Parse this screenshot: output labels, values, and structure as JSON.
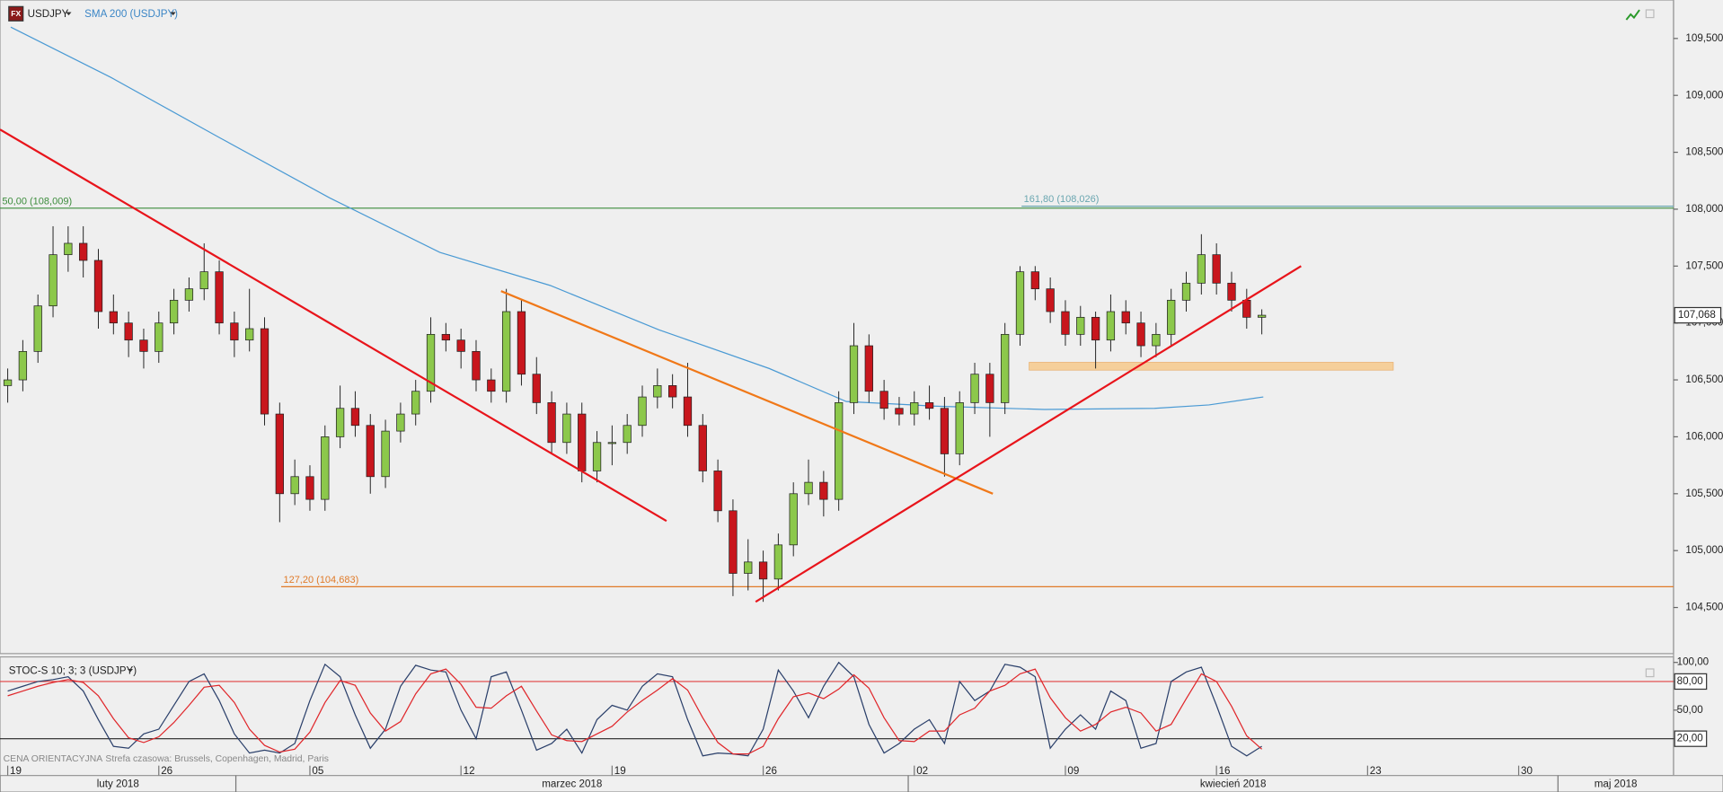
{
  "chart_data": {
    "type": "candlestick",
    "symbol_icon": "FX",
    "title": "USDJPY",
    "indicator_label": "SMA 200 (USDJPY)",
    "ylim": [
      104.095,
      109.838
    ],
    "xlim": [
      -0.51,
      110.25
    ],
    "yticks": [
      {
        "value": 104.5,
        "label": "104,500"
      },
      {
        "value": 105,
        "label": "105,000"
      },
      {
        "value": 105.5,
        "label": "105,500"
      },
      {
        "value": 106,
        "label": "106,000"
      },
      {
        "value": 106.5,
        "label": "106,500"
      },
      {
        "value": 107,
        "label": "107,000"
      },
      {
        "value": 107.5,
        "label": "107,500"
      },
      {
        "value": 108,
        "label": "108,000"
      },
      {
        "value": 108.5,
        "label": "108,500"
      },
      {
        "value": 109,
        "label": "109,000"
      },
      {
        "value": 109.5,
        "label": "109,500"
      }
    ],
    "xticks": [
      {
        "value": 0,
        "label": "19"
      },
      {
        "value": 10,
        "label": "26"
      },
      {
        "value": 20,
        "label": "05"
      },
      {
        "value": 30,
        "label": "12"
      },
      {
        "value": 40,
        "label": "19"
      },
      {
        "value": 50,
        "label": "26"
      },
      {
        "value": 60,
        "label": "02"
      },
      {
        "value": 70,
        "label": "09"
      },
      {
        "value": 80,
        "label": "16"
      },
      {
        "value": 90,
        "label": "23"
      },
      {
        "value": 100,
        "label": "30"
      }
    ],
    "months": [
      {
        "label": "luty 2018",
        "start": -0.51,
        "end": 15.1
      },
      {
        "label": "marzec 2018",
        "start": 15.1,
        "end": 59.6
      },
      {
        "label": "kwiecień 2018",
        "start": 59.6,
        "end": 102.6
      },
      {
        "label": "maj 2018",
        "start": 102.6,
        "end": 110.25
      }
    ],
    "up_color": "#8cc84b",
    "down_color": "#c8161d",
    "ohlc": [
      [
        106.45,
        106.6,
        106.3,
        106.5
      ],
      [
        106.5,
        106.85,
        106.4,
        106.75
      ],
      [
        106.75,
        107.25,
        106.65,
        107.15
      ],
      [
        107.15,
        107.85,
        107.05,
        107.6
      ],
      [
        107.6,
        107.85,
        107.45,
        107.7
      ],
      [
        107.7,
        107.85,
        107.4,
        107.55
      ],
      [
        107.55,
        107.65,
        106.95,
        107.1
      ],
      [
        107.1,
        107.25,
        106.9,
        107.0
      ],
      [
        107.0,
        107.1,
        106.7,
        106.85
      ],
      [
        106.85,
        106.95,
        106.6,
        106.75
      ],
      [
        106.75,
        107.1,
        106.65,
        107.0
      ],
      [
        107.0,
        107.3,
        106.9,
        107.2
      ],
      [
        107.2,
        107.4,
        107.1,
        107.3
      ],
      [
        107.3,
        107.7,
        107.2,
        107.45
      ],
      [
        107.45,
        107.55,
        106.9,
        107.0
      ],
      [
        107.0,
        107.1,
        106.7,
        106.85
      ],
      [
        106.85,
        107.3,
        106.75,
        106.95
      ],
      [
        106.95,
        107.05,
        106.1,
        106.2
      ],
      [
        106.2,
        106.3,
        105.25,
        105.5
      ],
      [
        105.5,
        105.8,
        105.4,
        105.65
      ],
      [
        105.65,
        105.75,
        105.35,
        105.45
      ],
      [
        105.45,
        106.1,
        105.35,
        106.0
      ],
      [
        106.0,
        106.45,
        105.9,
        106.25
      ],
      [
        106.25,
        106.4,
        106.0,
        106.1
      ],
      [
        106.1,
        106.2,
        105.5,
        105.65
      ],
      [
        105.65,
        106.15,
        105.55,
        106.05
      ],
      [
        106.05,
        106.3,
        105.95,
        106.2
      ],
      [
        106.2,
        106.5,
        106.1,
        106.4
      ],
      [
        106.4,
        107.05,
        106.3,
        106.9
      ],
      [
        106.9,
        107.0,
        106.75,
        106.85
      ],
      [
        106.85,
        106.95,
        106.6,
        106.75
      ],
      [
        106.75,
        106.85,
        106.4,
        106.5
      ],
      [
        106.5,
        106.6,
        106.3,
        106.4
      ],
      [
        106.4,
        107.3,
        106.3,
        107.1
      ],
      [
        107.1,
        107.2,
        106.45,
        106.55
      ],
      [
        106.55,
        106.7,
        106.2,
        106.3
      ],
      [
        106.3,
        106.4,
        105.85,
        105.95
      ],
      [
        105.95,
        106.3,
        105.85,
        106.2
      ],
      [
        106.2,
        106.3,
        105.6,
        105.7
      ],
      [
        105.7,
        106.05,
        105.6,
        105.95
      ],
      [
        105.95,
        106.1,
        105.75,
        105.95
      ],
      [
        105.95,
        106.2,
        105.85,
        106.1
      ],
      [
        106.1,
        106.45,
        106.0,
        106.35
      ],
      [
        106.35,
        106.6,
        106.25,
        106.45
      ],
      [
        106.45,
        106.55,
        106.25,
        106.35
      ],
      [
        106.35,
        106.65,
        106.0,
        106.1
      ],
      [
        106.1,
        106.2,
        105.6,
        105.7
      ],
      [
        105.7,
        105.8,
        105.25,
        105.35
      ],
      [
        105.35,
        105.45,
        104.6,
        104.8
      ],
      [
        104.8,
        105.1,
        104.65,
        104.9
      ],
      [
        104.9,
        105.0,
        104.55,
        104.75
      ],
      [
        104.75,
        105.15,
        104.65,
        105.05
      ],
      [
        105.05,
        105.6,
        104.95,
        105.5
      ],
      [
        105.5,
        105.8,
        105.4,
        105.6
      ],
      [
        105.6,
        105.7,
        105.3,
        105.45
      ],
      [
        105.45,
        106.4,
        105.35,
        106.3
      ],
      [
        106.3,
        107.0,
        106.2,
        106.8
      ],
      [
        106.8,
        106.9,
        106.3,
        106.4
      ],
      [
        106.4,
        106.5,
        106.15,
        106.25
      ],
      [
        106.25,
        106.35,
        106.1,
        106.2
      ],
      [
        106.2,
        106.4,
        106.1,
        106.3
      ],
      [
        106.3,
        106.45,
        106.15,
        106.25
      ],
      [
        106.25,
        106.35,
        105.65,
        105.85
      ],
      [
        105.85,
        106.4,
        105.75,
        106.3
      ],
      [
        106.3,
        106.65,
        106.2,
        106.55
      ],
      [
        106.55,
        106.65,
        106.0,
        106.3
      ],
      [
        106.3,
        107.0,
        106.2,
        106.9
      ],
      [
        106.9,
        107.5,
        106.8,
        107.45
      ],
      [
        107.45,
        107.5,
        107.2,
        107.3
      ],
      [
        107.3,
        107.4,
        107.0,
        107.1
      ],
      [
        107.1,
        107.2,
        106.8,
        106.9
      ],
      [
        106.9,
        107.15,
        106.8,
        107.05
      ],
      [
        107.05,
        107.1,
        106.6,
        106.85
      ],
      [
        106.85,
        107.25,
        106.75,
        107.1
      ],
      [
        107.1,
        107.2,
        106.9,
        107.0
      ],
      [
        107.0,
        107.1,
        106.7,
        106.8
      ],
      [
        106.8,
        107.0,
        106.7,
        106.9
      ],
      [
        106.9,
        107.3,
        106.8,
        107.2
      ],
      [
        107.2,
        107.45,
        107.1,
        107.35
      ],
      [
        107.35,
        107.78,
        107.25,
        107.6
      ],
      [
        107.6,
        107.7,
        107.25,
        107.35
      ],
      [
        107.35,
        107.45,
        107.1,
        107.2
      ],
      [
        107.2,
        107.3,
        106.95,
        107.05
      ],
      [
        107.05,
        107.12,
        106.9,
        107.068
      ]
    ],
    "last_price": {
      "value": 107.068,
      "label": "107,068"
    },
    "sma": {
      "color": "#4a9ad4",
      "x": [
        0.2,
        6.8,
        14.0,
        21.3,
        28.6,
        35.9,
        43.1,
        50.4,
        55.5,
        61.3,
        68.6,
        75.9,
        79.5,
        83.1
      ],
      "y": [
        109.6,
        109.16,
        108.63,
        108.1,
        107.62,
        107.33,
        106.94,
        106.6,
        106.31,
        106.27,
        106.24,
        106.25,
        106.28,
        106.35
      ]
    },
    "trendlines": [
      {
        "color": "#e8141b",
        "x": [
          -0.51,
          43.6
        ],
        "y": [
          108.7,
          105.26
        ]
      },
      {
        "color": "#f07818",
        "x": [
          32.65,
          65.2
        ],
        "y": [
          107.28,
          105.5
        ]
      },
      {
        "color": "#e8141b",
        "x": [
          49.5,
          85.6
        ],
        "y": [
          104.55,
          107.5
        ]
      }
    ],
    "levels": [
      {
        "value": 108.009,
        "label": "50,00 (108,009)",
        "color": "#3c8c3c",
        "from": -0.51
      },
      {
        "value": 108.026,
        "label": "161,80 (108,026)",
        "color": "#6aa6b0",
        "from": 67.1
      },
      {
        "value": 104.683,
        "label": "127,20 (104,683)",
        "color": "#e07a28",
        "from": 18.1
      }
    ],
    "zone": {
      "x": [
        67.6,
        91.7
      ],
      "y": [
        106.6,
        106.64
      ],
      "color": "#f5cf9a"
    },
    "oscillator": {
      "label": "STOC-S 10; 3; 3 (USDJPY)",
      "ylim": [
        -18.6,
        105.8
      ],
      "yticks": [
        {
          "value": 100,
          "label": "100,00"
        },
        {
          "value": 80,
          "label": "80,00"
        },
        {
          "value": 50,
          "label": "50,00"
        },
        {
          "value": 20,
          "label": "20,00"
        }
      ],
      "levels": [
        {
          "value": 80,
          "color": "#e04040"
        },
        {
          "value": 20,
          "color": "#222222"
        }
      ],
      "series": [
        {
          "color": "#2a3f6a",
          "values": [
            70,
            75,
            80,
            82,
            85,
            70,
            40,
            12,
            10,
            25,
            30,
            55,
            80,
            88,
            60,
            25,
            5,
            8,
            5,
            15,
            60,
            98,
            85,
            45,
            10,
            30,
            75,
            97,
            92,
            90,
            50,
            20,
            85,
            90,
            50,
            8,
            15,
            30,
            5,
            40,
            55,
            50,
            75,
            88,
            85,
            40,
            2,
            5,
            4,
            2,
            30,
            92,
            70,
            42,
            75,
            100,
            85,
            35,
            5,
            15,
            30,
            40,
            15,
            80,
            60,
            70,
            98,
            95,
            85,
            10,
            30,
            45,
            30,
            70,
            60,
            10,
            15,
            80,
            90,
            95,
            55,
            12,
            2,
            12
          ]
        },
        {
          "color": "#e0262a",
          "values": [
            65,
            70,
            75,
            79,
            82,
            79,
            65,
            41,
            21,
            16,
            22,
            37,
            55,
            74,
            76,
            58,
            30,
            13,
            6,
            9,
            27,
            58,
            81,
            76,
            47,
            28,
            38,
            67,
            88,
            93,
            77,
            53,
            52,
            65,
            75,
            49,
            24,
            18,
            17,
            25,
            33,
            48,
            60,
            71,
            83,
            71,
            42,
            16,
            4,
            4,
            12,
            41,
            64,
            68,
            62,
            72,
            87,
            73,
            42,
            18,
            17,
            28,
            28,
            45,
            52,
            70,
            76,
            88,
            93,
            63,
            42,
            28,
            35,
            48,
            53,
            47,
            28,
            35,
            62,
            88,
            80,
            54,
            23,
            9
          ]
        }
      ]
    },
    "footer_note": "CENA ORIENTACYJNA",
    "timezone_note": "Strefa czasowa: Brussels, Copenhagen, Madrid, Paris"
  }
}
